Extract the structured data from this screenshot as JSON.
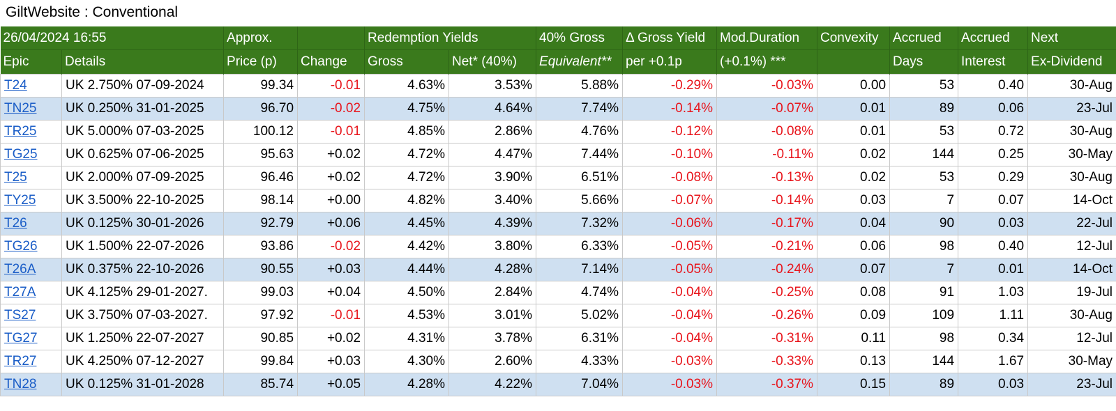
{
  "title": "GiltWebsite : Conventional",
  "header": {
    "row1": [
      "26/04/2024 16:55",
      "Approx.",
      "",
      "Redemption Yields",
      "40% Gross",
      "Δ Gross Yield",
      "Mod.Duration",
      "Convexity",
      "Accrued",
      "Accrued",
      "Next"
    ],
    "row2": [
      "Epic",
      "Details",
      "Price (p)",
      "Change",
      "Gross",
      "Net* (40%)",
      "Equivalent**",
      "per +0.1p",
      "(+0.1%) ***",
      "",
      "Days",
      "Interest",
      "Ex-Dividend"
    ]
  },
  "colors": {
    "header_bg": "#3a7a1c",
    "highlight_row": "#cfe0f1",
    "negative": "#e8141b",
    "link": "#1a5dc7"
  },
  "rows": [
    {
      "epic": "T24",
      "details": "UK 2.750% 07-09-2024",
      "price": "99.34",
      "change": "-0.01",
      "gross": "4.63%",
      "net": "3.53%",
      "equiv": "5.88%",
      "dgy": "-0.29%",
      "mod": "-0.03%",
      "convexity": "0.00",
      "days": "53",
      "interest": "0.40",
      "exdiv": "30-Aug",
      "highlight": false
    },
    {
      "epic": "TN25",
      "details": "UK 0.250% 31-01-2025",
      "price": "96.70",
      "change": "-0.02",
      "gross": "4.75%",
      "net": "4.64%",
      "equiv": "7.74%",
      "dgy": "-0.14%",
      "mod": "-0.07%",
      "convexity": "0.01",
      "days": "89",
      "interest": "0.06",
      "exdiv": "23-Jul",
      "highlight": true
    },
    {
      "epic": "TR25",
      "details": "UK 5.000% 07-03-2025",
      "price": "100.12",
      "change": "-0.01",
      "gross": "4.85%",
      "net": "2.86%",
      "equiv": "4.76%",
      "dgy": "-0.12%",
      "mod": "-0.08%",
      "convexity": "0.01",
      "days": "53",
      "interest": "0.72",
      "exdiv": "30-Aug",
      "highlight": false
    },
    {
      "epic": "TG25",
      "details": "UK 0.625% 07-06-2025",
      "price": "95.63",
      "change": "+0.02",
      "gross": "4.72%",
      "net": "4.47%",
      "equiv": "7.44%",
      "dgy": "-0.10%",
      "mod": "-0.11%",
      "convexity": "0.02",
      "days": "144",
      "interest": "0.25",
      "exdiv": "30-May",
      "highlight": false
    },
    {
      "epic": "T25",
      "details": "UK 2.000% 07-09-2025",
      "price": "96.46",
      "change": "+0.02",
      "gross": "4.72%",
      "net": "3.90%",
      "equiv": "6.51%",
      "dgy": "-0.08%",
      "mod": "-0.13%",
      "convexity": "0.02",
      "days": "53",
      "interest": "0.29",
      "exdiv": "30-Aug",
      "highlight": false
    },
    {
      "epic": "TY25",
      "details": "UK 3.500% 22-10-2025",
      "price": "98.14",
      "change": "+0.00",
      "gross": "4.82%",
      "net": "3.40%",
      "equiv": "5.66%",
      "dgy": "-0.07%",
      "mod": "-0.14%",
      "convexity": "0.03",
      "days": "7",
      "interest": "0.07",
      "exdiv": "14-Oct",
      "highlight": false
    },
    {
      "epic": "T26",
      "details": "UK 0.125% 30-01-2026",
      "price": "92.79",
      "change": "+0.06",
      "gross": "4.45%",
      "net": "4.39%",
      "equiv": "7.32%",
      "dgy": "-0.06%",
      "mod": "-0.17%",
      "convexity": "0.04",
      "days": "90",
      "interest": "0.03",
      "exdiv": "22-Jul",
      "highlight": true
    },
    {
      "epic": "TG26",
      "details": "UK 1.500% 22-07-2026",
      "price": "93.86",
      "change": "-0.02",
      "gross": "4.42%",
      "net": "3.80%",
      "equiv": "6.33%",
      "dgy": "-0.05%",
      "mod": "-0.21%",
      "convexity": "0.06",
      "days": "98",
      "interest": "0.40",
      "exdiv": "12-Jul",
      "highlight": false
    },
    {
      "epic": "T26A",
      "details": "UK 0.375% 22-10-2026",
      "price": "90.55",
      "change": "+0.03",
      "gross": "4.44%",
      "net": "4.28%",
      "equiv": "7.14%",
      "dgy": "-0.05%",
      "mod": "-0.24%",
      "convexity": "0.07",
      "days": "7",
      "interest": "0.01",
      "exdiv": "14-Oct",
      "highlight": true
    },
    {
      "epic": "T27A",
      "details": "UK 4.125% 29-01-2027.",
      "price": "99.03",
      "change": "+0.04",
      "gross": "4.50%",
      "net": "2.84%",
      "equiv": "4.74%",
      "dgy": "-0.04%",
      "mod": "-0.25%",
      "convexity": "0.08",
      "days": "91",
      "interest": "1.03",
      "exdiv": "19-Jul",
      "highlight": false
    },
    {
      "epic": "TS27",
      "details": "UK 3.750% 07-03-2027.",
      "price": "97.92",
      "change": "-0.01",
      "gross": "4.53%",
      "net": "3.01%",
      "equiv": "5.02%",
      "dgy": "-0.04%",
      "mod": "-0.26%",
      "convexity": "0.09",
      "days": "109",
      "interest": "1.11",
      "exdiv": "30-Aug",
      "highlight": false
    },
    {
      "epic": "TG27",
      "details": "UK 1.250% 22-07-2027",
      "price": "90.85",
      "change": "+0.02",
      "gross": "4.31%",
      "net": "3.78%",
      "equiv": "6.31%",
      "dgy": "-0.04%",
      "mod": "-0.31%",
      "convexity": "0.11",
      "days": "98",
      "interest": "0.34",
      "exdiv": "12-Jul",
      "highlight": false
    },
    {
      "epic": "TR27",
      "details": "UK 4.250% 07-12-2027",
      "price": "99.84",
      "change": "+0.03",
      "gross": "4.30%",
      "net": "2.60%",
      "equiv": "4.33%",
      "dgy": "-0.03%",
      "mod": "-0.33%",
      "convexity": "0.13",
      "days": "144",
      "interest": "1.67",
      "exdiv": "30-May",
      "highlight": false
    },
    {
      "epic": "TN28",
      "details": "UK 0.125% 31-01-2028",
      "price": "85.74",
      "change": "+0.05",
      "gross": "4.28%",
      "net": "4.22%",
      "equiv": "7.04%",
      "dgy": "-0.03%",
      "mod": "-0.37%",
      "convexity": "0.15",
      "days": "89",
      "interest": "0.03",
      "exdiv": "23-Jul",
      "highlight": true
    }
  ]
}
